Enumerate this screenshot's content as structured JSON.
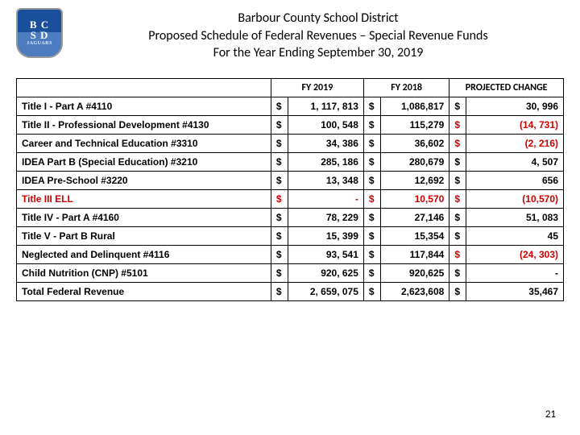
{
  "header": {
    "logo": {
      "line1": "B C",
      "line2": "S D",
      "mascot": "JAGUARS"
    },
    "title_line1": "Barbour County School District",
    "title_line2": "Proposed Schedule of Federal Revenues – Special Revenue Funds",
    "title_line3": "For the Year Ending September 30, 2019"
  },
  "table": {
    "columns": [
      "",
      "FY 2019",
      "FY 2018",
      "PROJECTED CHANGE"
    ],
    "rows": [
      {
        "label": "Title I - Part A #4110",
        "fy2019": "1, 117, 813",
        "fy2018": "1,086,817",
        "change": "30, 996",
        "neg": false
      },
      {
        "label": "Title II - Professional Development #4130",
        "fy2019": "100, 548",
        "fy2018": "115,279",
        "change": "(14, 731)",
        "neg": true
      },
      {
        "label": "Career and Technical Education #3310",
        "fy2019": "34, 386",
        "fy2018": "36,602",
        "change": "(2, 216)",
        "neg": true
      },
      {
        "label": "IDEA Part B (Special Education) #3210",
        "fy2019": "285, 186",
        "fy2018": "280,679",
        "change": "4, 507",
        "neg": false
      },
      {
        "label": "IDEA Pre-School #3220",
        "fy2019": "13, 348",
        "fy2018": "12,692",
        "change": "656",
        "neg": false
      },
      {
        "label": "Title III ELL",
        "fy2019": "-",
        "fy2018": "10,570",
        "change": "(10,570)",
        "neg": true,
        "red_label": true
      },
      {
        "label": "Title IV - Part A #4160",
        "fy2019": "78, 229",
        "fy2018": "27,146",
        "change": "51, 083",
        "neg": false
      },
      {
        "label": "Title V - Part B Rural",
        "fy2019": "15, 399",
        "fy2018": "15,354",
        "change": "45",
        "neg": false
      },
      {
        "label": "Neglected and Delinquent #4116",
        "fy2019": "93, 541",
        "fy2018": "117,844",
        "change": "(24, 303)",
        "neg": true
      },
      {
        "label": "Child Nutrition (CNP) #5101",
        "fy2019": "920, 625",
        "fy2018": "920,625",
        "change": "-",
        "neg": false
      }
    ],
    "total": {
      "label": "Total Federal Revenue",
      "fy2019": "2, 659, 075",
      "fy2018": "2,623,608",
      "change": "35,467"
    }
  },
  "page_number": "21",
  "colors": {
    "negative": "#d10000",
    "border": "#000000",
    "background": "#ffffff"
  }
}
